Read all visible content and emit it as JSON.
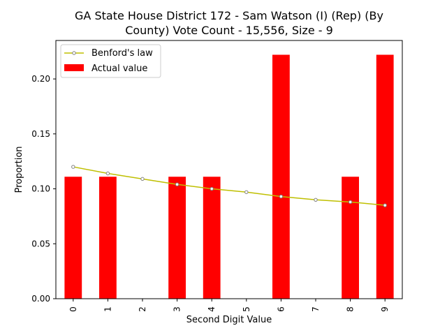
{
  "chart_data": {
    "type": "bar",
    "title_lines": [
      "GA State House District 172 - Sam Watson (I) (Rep) (By",
      "County) Vote Count - 15,556, Size - 9"
    ],
    "xlabel": "Second Digit Value",
    "ylabel": "Proportion",
    "categories": [
      "0",
      "1",
      "2",
      "3",
      "4",
      "5",
      "6",
      "7",
      "8",
      "9"
    ],
    "ylim": [
      0,
      0.235
    ],
    "yticks": [
      0.0,
      0.05,
      0.1,
      0.15,
      0.2
    ],
    "ytick_labels": [
      "0.00",
      "0.05",
      "0.10",
      "0.15",
      "0.20"
    ],
    "grid": false,
    "legend_position": "top-left",
    "series": [
      {
        "name": "Benford's law",
        "kind": "line",
        "color": "#bfbf00",
        "marker_edge": "#808080",
        "values": [
          0.12,
          0.114,
          0.109,
          0.104,
          0.1,
          0.097,
          0.093,
          0.09,
          0.088,
          0.085
        ]
      },
      {
        "name": "Actual value",
        "kind": "bar",
        "color": "#ff0000",
        "values": [
          0.111,
          0.111,
          0.0,
          0.111,
          0.111,
          0.0,
          0.222,
          0.0,
          0.111,
          0.222
        ]
      }
    ]
  }
}
